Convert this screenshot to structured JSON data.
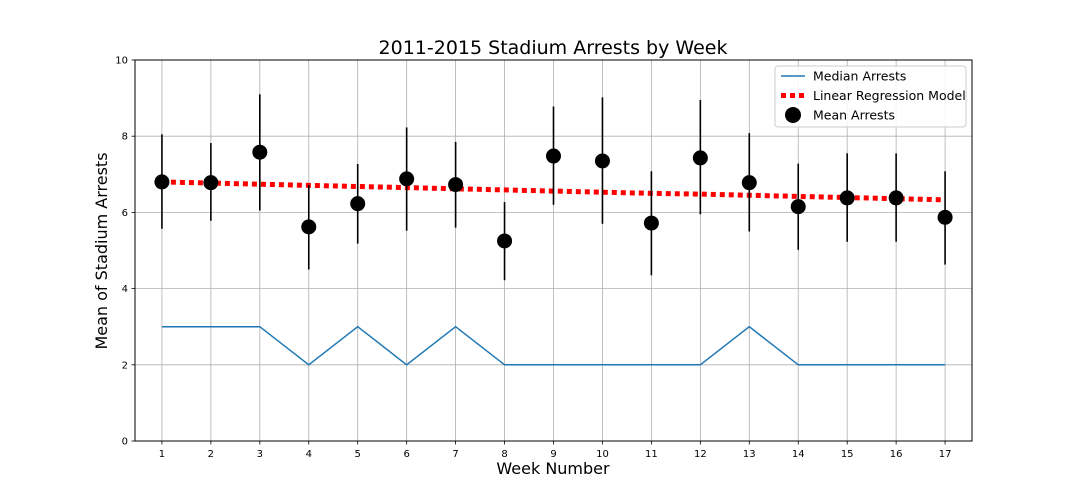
{
  "chart_data": {
    "type": "line",
    "title": "2011-2015 Stadium Arrests by Week",
    "xlabel": "Week Number",
    "ylabel": "Mean of Stadium Arrests",
    "xlim": [
      0.45,
      17.55
    ],
    "ylim": [
      0,
      10
    ],
    "x_ticks": [
      1,
      2,
      3,
      4,
      5,
      6,
      7,
      8,
      9,
      10,
      11,
      12,
      13,
      14,
      15,
      16,
      17
    ],
    "y_ticks": [
      0,
      2,
      4,
      6,
      8,
      10
    ],
    "grid": true,
    "legend_position": "top-right",
    "x": [
      1,
      2,
      3,
      4,
      5,
      6,
      7,
      8,
      9,
      10,
      11,
      12,
      13,
      14,
      15,
      16,
      17
    ],
    "series": [
      {
        "name": "Median Arrests",
        "kind": "line",
        "color": "#1f77b4",
        "values": [
          3,
          3,
          3,
          2,
          3,
          2,
          3,
          2,
          2,
          2,
          2,
          2,
          3,
          2,
          2,
          2,
          2
        ]
      },
      {
        "name": "Linear Regression Model",
        "kind": "dotted-line",
        "color": "#ff0000",
        "values": [
          6.8,
          6.77,
          6.74,
          6.71,
          6.68,
          6.65,
          6.62,
          6.59,
          6.56,
          6.53,
          6.5,
          6.48,
          6.45,
          6.42,
          6.39,
          6.36,
          6.33
        ]
      },
      {
        "name": "Mean Arrests",
        "kind": "scatter-errorbar",
        "color": "#000000",
        "values": [
          6.8,
          6.78,
          7.58,
          5.62,
          6.23,
          6.88,
          6.73,
          5.25,
          7.48,
          7.35,
          5.72,
          7.43,
          6.78,
          6.15,
          6.38,
          6.38,
          5.87
        ],
        "error_low": [
          5.57,
          5.78,
          6.05,
          4.5,
          5.18,
          5.52,
          5.6,
          4.22,
          6.2,
          5.7,
          4.35,
          5.95,
          5.5,
          5.02,
          5.23,
          5.23,
          4.63
        ],
        "error_high": [
          8.05,
          7.82,
          9.1,
          6.72,
          7.27,
          8.23,
          7.85,
          6.27,
          8.78,
          9.02,
          7.08,
          8.95,
          8.08,
          7.28,
          7.55,
          7.55,
          7.08
        ]
      }
    ]
  }
}
